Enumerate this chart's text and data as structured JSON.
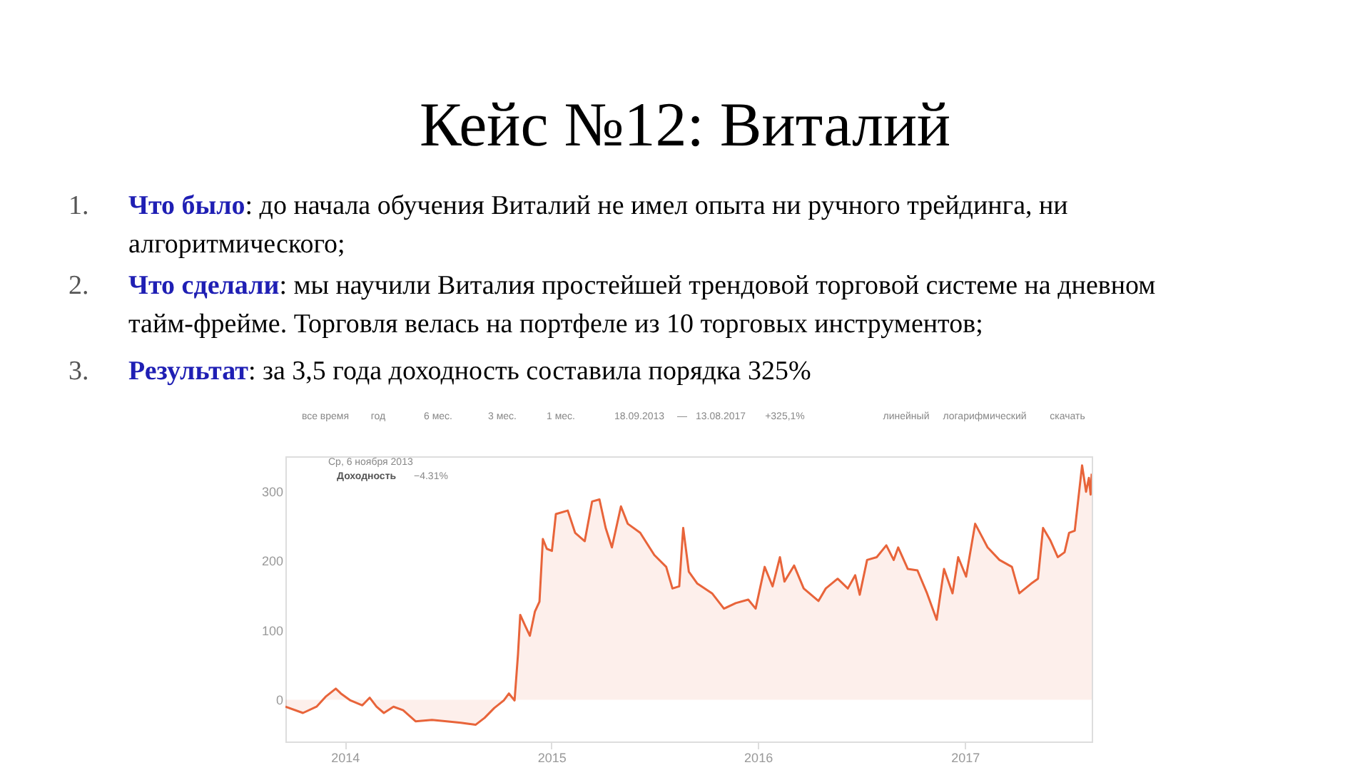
{
  "chart_data": {
    "type": "area",
    "title": "Кейс №12: Виталий",
    "annotations": [
      "1. Что было: до начала обучения Виталий не имел опыта ни ручного трейдинга, ни\nалгоритмического;",
      "2. Что сделали: мы научили Виталия простейшей трендовой торговой системе на дневном\nтайм-фрейме. Торговля велась на портфеле из 10 торговых инструментов;",
      "3. Результат: за 3,5 года доходность составила порядка 325%",
      "все время",
      "год",
      "6 мес.",
      "3 мес.",
      "1 мес.",
      "18.09.2013",
      "—",
      "13.08.2017",
      "+325,1%",
      "линейный",
      "логарифмический",
      "скачать",
      "Ср, 6 ноября 2013",
      "Доходность",
      "−4.31%"
    ],
    "x": [
      "2013-09-18",
      "2013-10-19",
      "2013-11-12",
      "2013-11-29",
      "2013-12-16",
      "2013-12-25",
      "2014-01-11",
      "2014-02-01",
      "2014-02-14",
      "2014-02-26",
      "2014-03-11",
      "2014-03-28",
      "2014-04-14",
      "2014-05-06",
      "2014-06-04",
      "2014-06-30",
      "2014-07-25",
      "2014-08-20",
      "2014-09-05",
      "2014-09-22",
      "2014-10-09",
      "2014-10-18",
      "2014-10-28",
      "2014-11-03",
      "2014-11-07",
      "2014-11-16",
      "2014-11-24",
      "2014-12-03",
      "2014-12-11",
      "2014-12-17",
      "2014-12-24",
      "2015-01-02",
      "2015-01-09",
      "2015-01-30",
      "2015-02-12",
      "2015-03-01",
      "2015-03-14",
      "2015-03-27",
      "2015-04-07",
      "2015-04-18",
      "2015-05-04",
      "2015-05-16",
      "2015-06-07",
      "2015-07-02",
      "2015-07-23",
      "2015-08-03",
      "2015-08-15",
      "2015-08-22",
      "2015-09-01",
      "2015-09-16",
      "2015-10-12",
      "2015-11-02",
      "2015-11-23",
      "2015-12-15",
      "2015-12-28",
      "2016-01-13",
      "2016-01-27",
      "2016-02-09",
      "2016-02-17",
      "2016-03-05",
      "2016-03-22",
      "2016-04-17",
      "2016-04-30",
      "2016-05-21",
      "2016-06-08",
      "2016-06-21",
      "2016-06-29",
      "2016-07-12",
      "2016-07-29",
      "2016-08-15",
      "2016-08-28",
      "2016-09-05",
      "2016-09-22",
      "2016-10-09",
      "2016-10-26",
      "2016-11-12",
      "2016-11-25",
      "2016-12-10",
      "2016-12-20",
      "2017-01-03",
      "2017-01-19",
      "2017-02-01",
      "2017-02-10",
      "2017-03-03",
      "2017-03-25",
      "2017-04-07",
      "2017-04-28",
      "2017-05-10",
      "2017-05-19",
      "2017-06-01",
      "2017-06-14",
      "2017-06-26",
      "2017-07-04",
      "2017-07-14",
      "2017-07-27",
      "2017-08-03",
      "2017-08-08",
      "2017-08-11",
      "2017-08-13"
    ],
    "series": [
      {
        "color": "#e8643a",
        "values": [
          -10,
          -19,
          -10,
          5,
          16,
          9,
          -1,
          -8,
          3,
          -10,
          -19,
          -10,
          -15,
          -31,
          -29,
          -31,
          -33,
          -36,
          -26,
          -12,
          -1,
          9,
          -1,
          65,
          122,
          106,
          92,
          127,
          141,
          231,
          217,
          214,
          267,
          272,
          240,
          228,
          285,
          288,
          247,
          219,
          278,
          253,
          240,
          208,
          191,
          160,
          163,
          247,
          184,
          167,
          153,
          131,
          139,
          144,
          131,
          191,
          163,
          205,
          170,
          193,
          160,
          142,
          160,
          174,
          160,
          179,
          151,
          201,
          205,
          222,
          201,
          219,
          188,
          186,
          153,
          115,
          188,
          153,
          205,
          177,
          253,
          233,
          219,
          201,
          191,
          153,
          167,
          174,
          247,
          229,
          205,
          212,
          240,
          243,
          337,
          299,
          319,
          295,
          325
        ]
      }
    ],
    "xlim": [
      "2013-09-18",
      "2017-08-13"
    ],
    "xticks": [
      "2014",
      "2015",
      "2016",
      "2017"
    ],
    "ylim": [
      -60,
      350
    ],
    "yticks": [
      0,
      100,
      200,
      300
    ],
    "grid": false,
    "legend": false
  }
}
